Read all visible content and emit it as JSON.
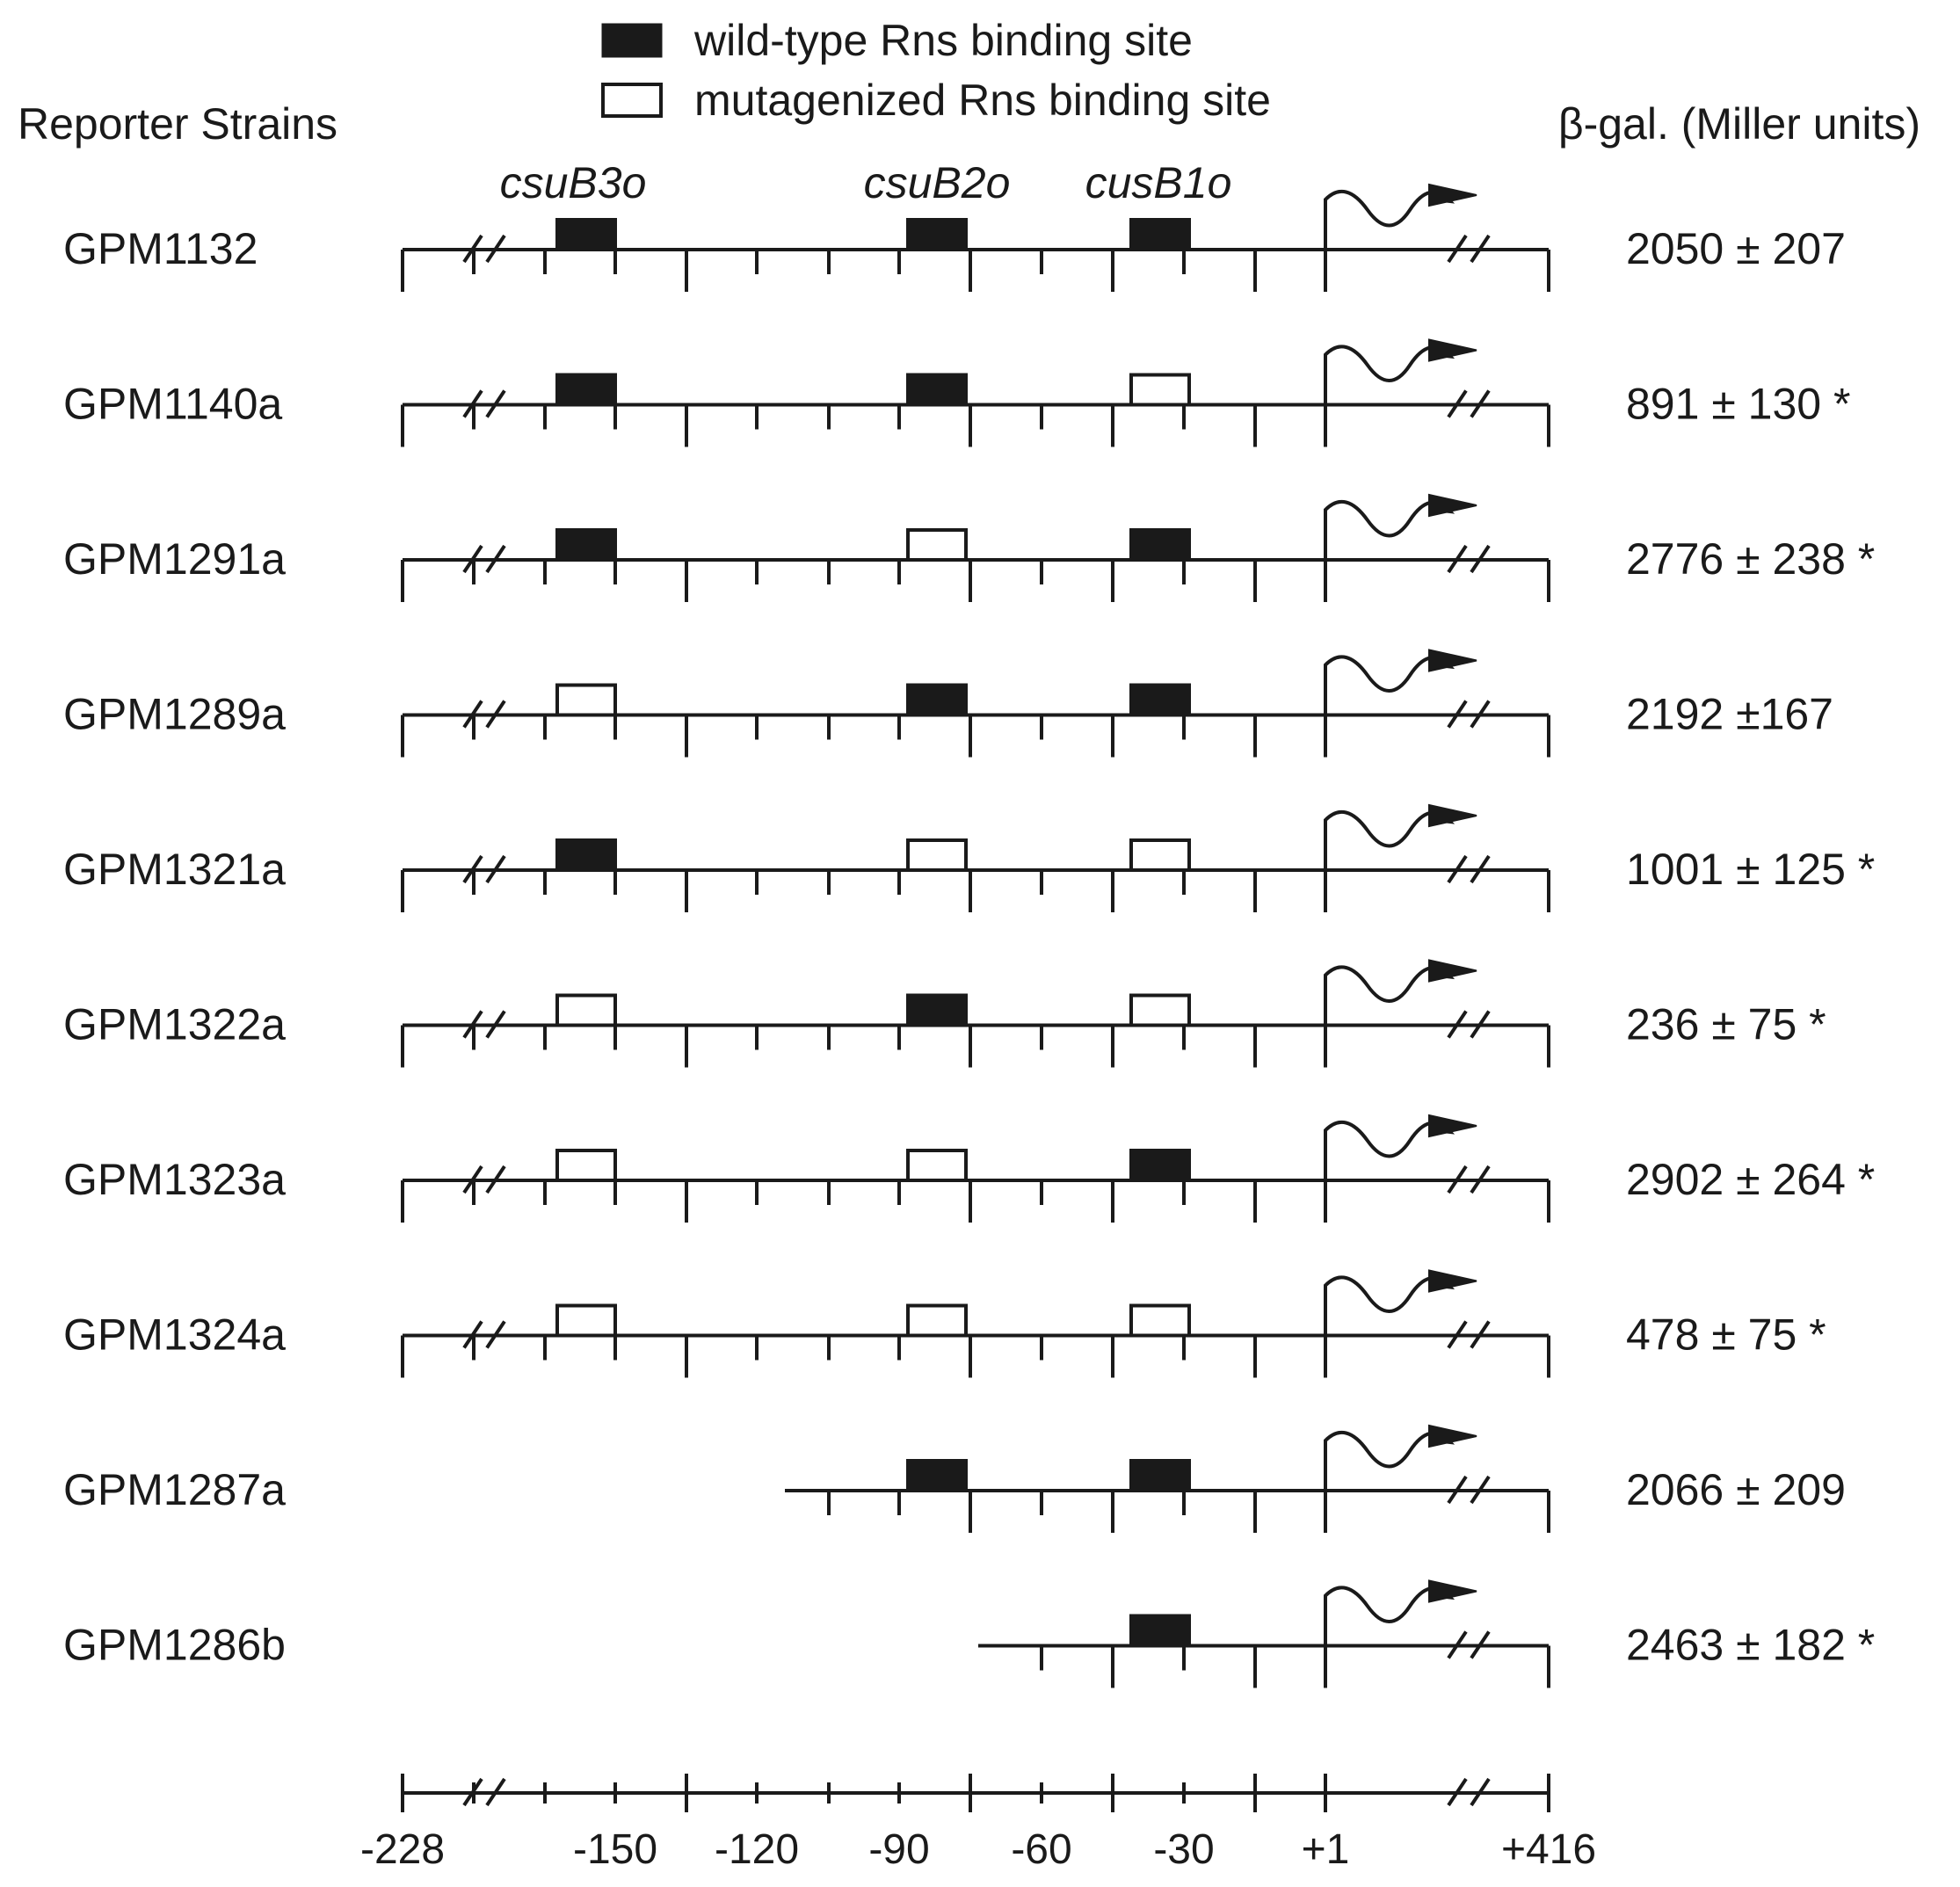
{
  "legend": {
    "wild_type": "wild-type Rns binding site",
    "mutagenized": "mutagenized Rns binding site"
  },
  "headers": {
    "strains": "Reporter Strains",
    "activity": "β-gal. (Miller units)"
  },
  "site_names": [
    "csuB3o",
    "csuB2o",
    "cusB1o"
  ],
  "strains": [
    {
      "name": "GPM1132",
      "value": "2050 ± 207",
      "sites": [
        "wt",
        "wt",
        "wt"
      ],
      "start": -228
    },
    {
      "name": "GPM1140a",
      "value": "891 ± 130 *",
      "sites": [
        "wt",
        "wt",
        "mut"
      ],
      "start": -228
    },
    {
      "name": "GPM1291a",
      "value": "2776 ± 238 *",
      "sites": [
        "wt",
        "mut",
        "wt"
      ],
      "start": -228
    },
    {
      "name": "GPM1289a",
      "value": "2192 ±167",
      "sites": [
        "mut",
        "wt",
        "wt"
      ],
      "start": -228
    },
    {
      "name": "GPM1321a",
      "value": "1001 ± 125 *",
      "sites": [
        "wt",
        "mut",
        "mut"
      ],
      "start": -228
    },
    {
      "name": "GPM1322a",
      "value": "236 ± 75 *",
      "sites": [
        "mut",
        "wt",
        "mut"
      ],
      "start": -228
    },
    {
      "name": "GPM1323a",
      "value": "2902 ± 264 *",
      "sites": [
        "mut",
        "mut",
        "wt"
      ],
      "start": -228
    },
    {
      "name": "GPM1324a",
      "value": "478 ± 75 *",
      "sites": [
        "mut",
        "mut",
        "mut"
      ],
      "start": -228
    },
    {
      "name": "GPM1287a",
      "value": "2066 ± 209",
      "sites": [
        null,
        "wt",
        "wt"
      ],
      "start": -113
    },
    {
      "name": "GPM1286b",
      "value": "2463 ± 182 *",
      "sites": [
        null,
        null,
        "wt"
      ],
      "start": -73
    }
  ],
  "axis": {
    "tick_labels": [
      "-228",
      "-150",
      "-120",
      "-90",
      "-60",
      "-30",
      "+1",
      "+416"
    ]
  },
  "colors": {
    "ink": "#1a1a1a",
    "background": "#ffffff"
  }
}
